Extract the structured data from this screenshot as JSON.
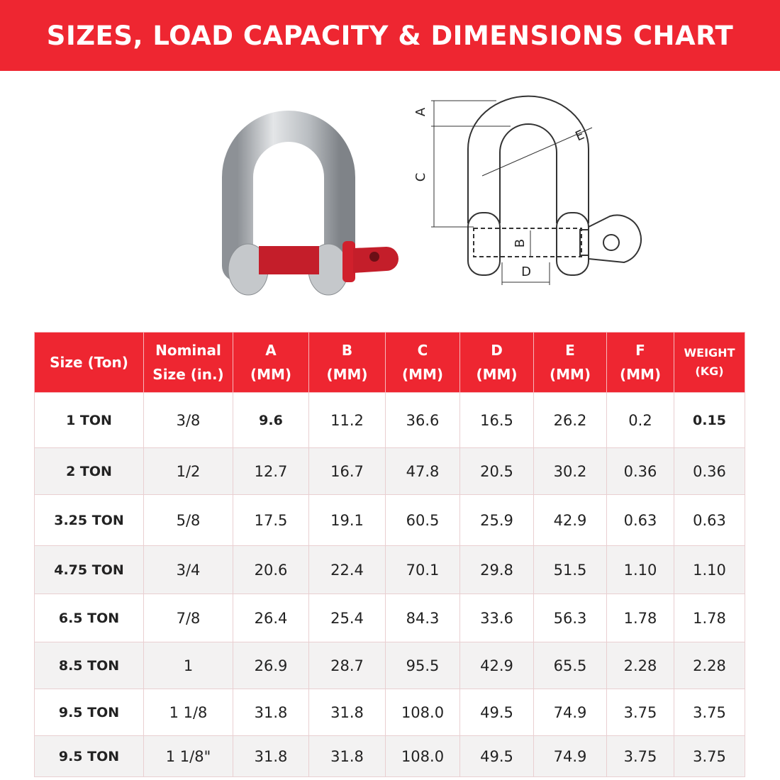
{
  "header": {
    "title": "SIZES, LOAD CAPACITY & DIMENSIONS CHART"
  },
  "diagram": {
    "labels": [
      "A",
      "C",
      "E",
      "B",
      "D"
    ]
  },
  "table": {
    "headers": [
      [
        "Size (Ton)"
      ],
      [
        "Nominal",
        "Size (in.)"
      ],
      [
        "A",
        "(MM)"
      ],
      [
        "B",
        "(MM)"
      ],
      [
        "C",
        "(MM)"
      ],
      [
        "D",
        "(MM)"
      ],
      [
        "E",
        "(MM)"
      ],
      [
        "F",
        "(MM)"
      ],
      [
        "WEIGHT",
        "(KG)"
      ]
    ],
    "rows": [
      [
        "1 TON",
        "3/8",
        "9.6",
        "11.2",
        "36.6",
        "16.5",
        "26.2",
        "0.2",
        "0.15"
      ],
      [
        "2 TON",
        "1/2",
        "12.7",
        "16.7",
        "47.8",
        "20.5",
        "30.2",
        "0.36",
        "0.36"
      ],
      [
        "3.25 TON",
        "5/8",
        "17.5",
        "19.1",
        "60.5",
        "25.9",
        "42.9",
        "0.63",
        "0.63"
      ],
      [
        "4.75 TON",
        "3/4",
        "20.6",
        "22.4",
        "70.1",
        "29.8",
        "51.5",
        "1.10",
        "1.10"
      ],
      [
        "6.5 TON",
        "7/8",
        "26.4",
        "25.4",
        "84.3",
        "33.6",
        "56.3",
        "1.78",
        "1.78"
      ],
      [
        "8.5 TON",
        "1",
        "26.9",
        "28.7",
        "95.5",
        "42.9",
        "65.5",
        "2.28",
        "2.28"
      ],
      [
        "9.5 TON",
        "1 1/8",
        "31.8",
        "31.8",
        "108.0",
        "49.5",
        "74.9",
        "3.75",
        "3.75"
      ],
      [
        "9.5 TON",
        "1 1/8\"",
        "31.8",
        "31.8",
        "108.0",
        "49.5",
        "74.9",
        "3.75",
        "3.75"
      ]
    ]
  }
}
